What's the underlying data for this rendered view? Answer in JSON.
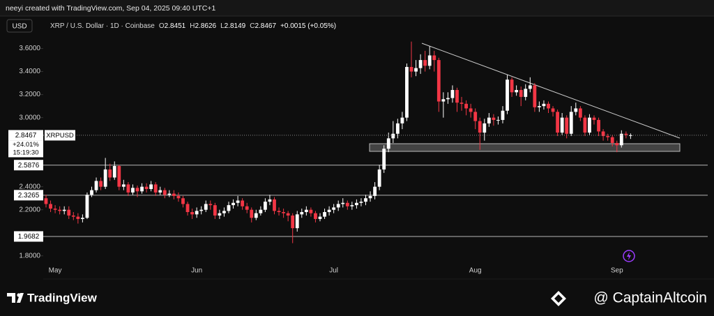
{
  "attribution": "neeyi created with TradingView.com, Sep 04, 2025 09:40 UTC+1",
  "chart_data": {
    "type": "candlestick",
    "currency": "USD",
    "symbol": "XRP / U.S. Dollar · 1D · Coinbase",
    "ohlc_keys": [
      "O",
      "H",
      "L",
      "C"
    ],
    "change": "+0.0015 (+0.05%)",
    "symbol_tag": "XRPUSD",
    "change_pct": "+24.01%",
    "countdown": "15:19:30",
    "up_color": "#ffffff",
    "down_color": "#f23645",
    "categories": [
      null,
      null,
      "May",
      null,
      null,
      null,
      null,
      null,
      null,
      null,
      null,
      null,
      null,
      null,
      null,
      null,
      null,
      null,
      null,
      null,
      null,
      null,
      null,
      null,
      null,
      null,
      null,
      null,
      null,
      null,
      null,
      null,
      null,
      "Jun",
      null,
      null,
      null,
      null,
      null,
      null,
      null,
      null,
      null,
      null,
      null,
      null,
      null,
      null,
      null,
      null,
      null,
      null,
      null,
      null,
      null,
      null,
      null,
      null,
      null,
      null,
      null,
      null,
      null,
      "Jul",
      null,
      null,
      null,
      null,
      null,
      null,
      null,
      null,
      null,
      null,
      null,
      null,
      null,
      null,
      null,
      null,
      null,
      null,
      null,
      null,
      null,
      null,
      null,
      null,
      null,
      null,
      null,
      null,
      null,
      null,
      "Aug",
      null,
      null,
      null,
      null,
      null,
      null,
      null,
      null,
      null,
      null,
      null,
      null,
      null,
      null,
      null,
      null,
      null,
      null,
      null,
      null,
      null,
      null,
      null,
      null,
      null,
      null,
      null,
      null,
      null,
      null,
      "Sep",
      null,
      null,
      null
    ],
    "open": [
      2.3,
      2.25,
      2.21,
      2.2,
      2.19,
      2.2,
      2.15,
      2.14,
      2.12,
      2.13,
      2.33,
      2.37,
      2.45,
      2.4,
      2.55,
      2.48,
      2.58,
      2.4,
      2.42,
      2.35,
      2.39,
      2.36,
      2.4,
      2.38,
      2.42,
      2.35,
      2.37,
      2.33,
      2.34,
      2.32,
      2.3,
      2.25,
      2.18,
      2.16,
      2.19,
      2.2,
      2.25,
      2.24,
      2.15,
      2.17,
      2.19,
      2.24,
      2.26,
      2.28,
      2.23,
      2.2,
      2.13,
      2.17,
      2.2,
      2.27,
      2.29,
      2.19,
      2.18,
      2.17,
      2.15,
      2.04,
      2.16,
      2.18,
      2.2,
      2.17,
      2.12,
      2.14,
      2.18,
      2.2,
      2.22,
      2.25,
      2.26,
      2.23,
      2.24,
      2.26,
      2.27,
      2.3,
      2.32,
      2.4,
      2.55,
      2.73,
      2.82,
      2.86,
      2.95,
      3.0,
      3.44,
      3.4,
      3.43,
      3.5,
      3.45,
      3.54,
      3.5,
      3.14,
      3.16,
      3.17,
      3.24,
      3.13,
      3.12,
      3.08,
      3.05,
      2.97,
      2.87,
      2.95,
      3.0,
      2.98,
      2.98,
      3.06,
      3.33,
      3.22,
      3.24,
      3.18,
      3.25,
      3.28,
      3.09,
      3.1,
      3.12,
      3.08,
      3.05,
      2.87,
      3.0,
      2.86,
      3.05,
      3.08,
      3.0,
      2.87,
      3.0,
      2.98,
      2.88,
      2.84,
      2.83,
      2.78,
      2.76,
      2.86,
      2.8451
    ],
    "high": [
      2.33,
      2.28,
      2.24,
      2.23,
      2.23,
      2.23,
      2.18,
      2.17,
      2.16,
      2.35,
      2.4,
      2.48,
      2.48,
      2.65,
      2.6,
      2.62,
      2.59,
      2.46,
      2.44,
      2.42,
      2.41,
      2.43,
      2.43,
      2.45,
      2.44,
      2.4,
      2.39,
      2.37,
      2.37,
      2.35,
      2.32,
      2.27,
      2.21,
      2.22,
      2.23,
      2.28,
      2.28,
      2.26,
      2.2,
      2.22,
      2.27,
      2.29,
      2.32,
      2.3,
      2.26,
      2.22,
      2.2,
      2.23,
      2.3,
      2.33,
      2.31,
      2.22,
      2.21,
      2.19,
      2.17,
      2.19,
      2.21,
      2.23,
      2.22,
      2.19,
      2.17,
      2.21,
      2.23,
      2.25,
      2.28,
      2.3,
      2.28,
      2.27,
      2.29,
      2.3,
      2.33,
      2.36,
      2.44,
      2.59,
      2.76,
      2.87,
      2.97,
      2.99,
      3.05,
      3.47,
      3.66,
      3.5,
      3.55,
      3.58,
      3.62,
      3.58,
      3.52,
      3.22,
      3.22,
      3.28,
      3.26,
      3.18,
      3.15,
      3.12,
      3.08,
      3.0,
      2.99,
      3.04,
      3.03,
      3.01,
      3.1,
      3.37,
      3.35,
      3.28,
      3.27,
      3.29,
      3.35,
      3.3,
      3.14,
      3.15,
      3.14,
      3.1,
      3.07,
      3.04,
      3.02,
      3.1,
      3.13,
      3.1,
      3.02,
      3.03,
      3.02,
      3.0,
      2.9,
      2.86,
      2.85,
      2.8,
      2.89,
      2.88,
      2.8626
    ],
    "low": [
      2.22,
      2.18,
      2.17,
      2.16,
      2.16,
      2.12,
      2.11,
      2.08,
      2.09,
      2.12,
      2.31,
      2.35,
      2.37,
      2.38,
      2.45,
      2.46,
      2.37,
      2.37,
      2.32,
      2.33,
      2.31,
      2.34,
      2.35,
      2.36,
      2.32,
      2.33,
      2.3,
      2.31,
      2.29,
      2.27,
      2.22,
      2.15,
      2.12,
      2.13,
      2.16,
      2.18,
      2.2,
      2.12,
      2.12,
      2.14,
      2.17,
      2.21,
      2.23,
      2.2,
      2.17,
      2.09,
      2.11,
      2.15,
      2.18,
      2.24,
      2.16,
      2.15,
      2.13,
      2.1,
      1.91,
      2.01,
      2.13,
      2.15,
      2.14,
      2.09,
      2.1,
      2.12,
      2.15,
      2.17,
      2.19,
      2.22,
      2.2,
      2.2,
      2.21,
      2.23,
      2.24,
      2.27,
      2.29,
      2.37,
      2.52,
      2.7,
      2.78,
      2.82,
      2.9,
      2.97,
      3.35,
      3.36,
      3.38,
      3.4,
      3.42,
      3.4,
      3.05,
      3.0,
      3.12,
      3.13,
      3.05,
      3.06,
      3.02,
      3.0,
      2.9,
      2.72,
      2.8,
      2.92,
      2.93,
      2.94,
      2.95,
      3.03,
      3.18,
      3.19,
      3.1,
      3.15,
      3.22,
      3.05,
      3.05,
      3.07,
      3.04,
      3.01,
      2.84,
      2.85,
      2.82,
      2.84,
      3.02,
      2.97,
      2.84,
      2.85,
      2.94,
      2.84,
      2.8,
      2.8,
      2.75,
      2.7,
      2.74,
      2.82,
      2.8149
    ],
    "close": [
      2.25,
      2.21,
      2.2,
      2.19,
      2.2,
      2.15,
      2.14,
      2.12,
      2.13,
      2.33,
      2.37,
      2.45,
      2.4,
      2.55,
      2.48,
      2.58,
      2.4,
      2.42,
      2.35,
      2.39,
      2.36,
      2.4,
      2.38,
      2.42,
      2.35,
      2.37,
      2.33,
      2.34,
      2.32,
      2.3,
      2.25,
      2.18,
      2.16,
      2.19,
      2.2,
      2.25,
      2.24,
      2.15,
      2.17,
      2.19,
      2.24,
      2.26,
      2.28,
      2.23,
      2.2,
      2.13,
      2.17,
      2.2,
      2.27,
      2.29,
      2.19,
      2.18,
      2.17,
      2.15,
      2.04,
      2.16,
      2.18,
      2.2,
      2.17,
      2.12,
      2.14,
      2.18,
      2.2,
      2.22,
      2.25,
      2.26,
      2.23,
      2.24,
      2.26,
      2.27,
      2.3,
      2.32,
      2.4,
      2.55,
      2.73,
      2.82,
      2.86,
      2.95,
      3.0,
      3.44,
      3.4,
      3.43,
      3.5,
      3.45,
      3.54,
      3.5,
      3.14,
      3.16,
      3.17,
      3.24,
      3.13,
      3.12,
      3.08,
      3.05,
      2.97,
      2.87,
      2.95,
      3.0,
      2.98,
      2.98,
      3.06,
      3.33,
      3.22,
      3.24,
      3.18,
      3.25,
      3.28,
      3.09,
      3.1,
      3.12,
      3.08,
      3.05,
      2.87,
      3.0,
      2.86,
      3.05,
      3.08,
      3.0,
      2.87,
      3.0,
      2.98,
      2.88,
      2.84,
      2.83,
      2.78,
      2.76,
      2.86,
      2.85,
      2.8467
    ],
    "ylim": [
      1.75,
      3.67
    ],
    "yticks": [
      {
        "value": 3.6,
        "label": "3.6000"
      },
      {
        "value": 3.4,
        "label": "3.4000"
      },
      {
        "value": 3.2,
        "label": "3.2000"
      },
      {
        "value": 3.0,
        "label": "3.0000"
      },
      {
        "value": 2.4,
        "label": "2.4000"
      },
      {
        "value": 2.2,
        "label": "2.2000"
      },
      {
        "value": 1.8,
        "label": "1.8000"
      }
    ],
    "levels": [
      2.5876,
      2.3265,
      1.9682
    ]
  },
  "brand": "TradingView",
  "watermark": "@ CaptainAltcoin"
}
